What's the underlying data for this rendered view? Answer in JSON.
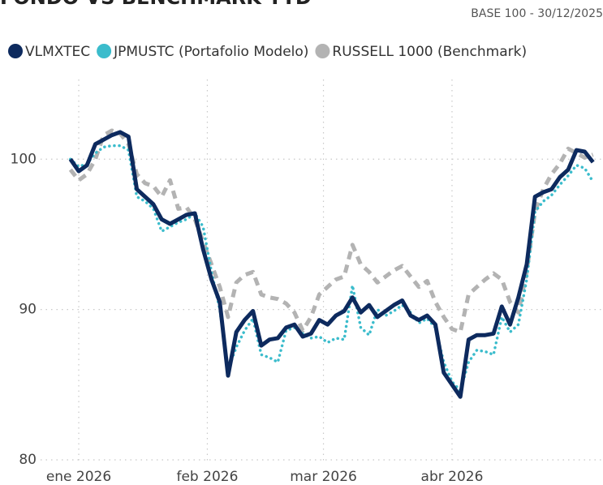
{
  "chart_data": {
    "type": "line",
    "title": "FONDO VS BENCHMARK YTD",
    "subtitle": "BASE 100 - 30/12/2025",
    "x": [
      -1,
      1,
      3,
      5,
      7,
      9,
      11,
      13,
      15,
      17,
      19,
      21,
      23,
      25,
      27,
      29,
      31,
      33,
      35,
      37,
      39,
      41,
      43,
      45,
      47,
      49,
      51,
      53,
      55,
      57,
      59,
      61,
      63,
      65,
      67,
      69,
      71,
      73,
      75,
      77,
      79,
      81,
      83,
      85,
      87,
      89,
      91,
      93,
      95,
      97,
      99,
      101,
      103,
      105,
      107,
      109,
      111,
      113,
      115,
      117,
      119,
      121,
      123,
      125
    ],
    "series": [
      {
        "name": "VLMXTEC",
        "color": "#0d2a5e",
        "style": "solid",
        "values": [
          100,
          99.2,
          99.6,
          101,
          101.3,
          101.6,
          101.8,
          101.5,
          98,
          97.5,
          97,
          96,
          95.7,
          96,
          96.3,
          96.4,
          94,
          92,
          90.5,
          85.6,
          88.5,
          89.3,
          89.9,
          87.6,
          88,
          88.1,
          88.8,
          89,
          88.2,
          88.4,
          89.3,
          89,
          89.6,
          89.9,
          90.8,
          89.8,
          90.3,
          89.5,
          89.9,
          90.3,
          90.6,
          89.6,
          89.3,
          89.6,
          89,
          85.8,
          85,
          84.2,
          88,
          88.3,
          88.3,
          88.4,
          90.2,
          89,
          90.8,
          93,
          97.5,
          97.8,
          98,
          98.8,
          99.3,
          100.6,
          100.5,
          99.8
        ]
      },
      {
        "name": "JPMUSTC (Portafolio Modelo)",
        "color": "#3bbccc",
        "style": "dotted",
        "values": [
          100,
          99.5,
          99.7,
          100.4,
          100.8,
          100.9,
          100.9,
          100.6,
          97.5,
          97.2,
          96.7,
          95.2,
          95.5,
          95.8,
          96,
          96.4,
          95.5,
          92.5,
          90,
          86,
          87.5,
          88.6,
          89.4,
          87,
          86.8,
          86.5,
          88.6,
          88.8,
          88.4,
          88.1,
          88.2,
          87.8,
          88.1,
          88,
          91.6,
          88.8,
          88.3,
          90,
          89.6,
          89.9,
          90.3,
          89.8,
          89.1,
          89.4,
          88.8,
          86.5,
          85.2,
          84.6,
          86.5,
          87.3,
          87.2,
          87,
          89.5,
          88.5,
          89,
          92,
          96.5,
          97.2,
          97.6,
          98.3,
          98.9,
          99.6,
          99.4,
          98.5
        ]
      },
      {
        "name": "RUSSELL 1000 (Benchmark)",
        "color": "#b3b3b3",
        "style": "dashed",
        "values": [
          99.3,
          98.6,
          99,
          100,
          101.6,
          101.9,
          101.7,
          101,
          99,
          98.4,
          98.2,
          97.5,
          98.6,
          96.7,
          96.8,
          96,
          94.5,
          93,
          91.5,
          89.5,
          91.8,
          92.3,
          92.5,
          91,
          90.8,
          90.7,
          90.4,
          89.8,
          88.6,
          89.5,
          91,
          91.5,
          92,
          92.2,
          94.3,
          93,
          92.5,
          91.8,
          92.2,
          92.6,
          92.9,
          92.2,
          91.5,
          91.9,
          90.5,
          89.5,
          88.7,
          88.5,
          91,
          91.5,
          92,
          92.4,
          92,
          90.5,
          89.8,
          92.5,
          96.5,
          98,
          99,
          99.7,
          100.7,
          100.4,
          100.1,
          100.3
        ]
      }
    ],
    "xlim": [
      -8.2,
      127.4
    ],
    "xticks": [
      {
        "value": 1,
        "label": "ene 2026"
      },
      {
        "value": 32,
        "label": "feb 2026"
      },
      {
        "value": 60,
        "label": "mar 2026"
      },
      {
        "value": 91,
        "label": "abr 2026"
      }
    ],
    "ylim": [
      79.3,
      105.3
    ],
    "yticks": [
      80,
      90,
      100
    ],
    "grid": true,
    "legend": "top-left"
  }
}
